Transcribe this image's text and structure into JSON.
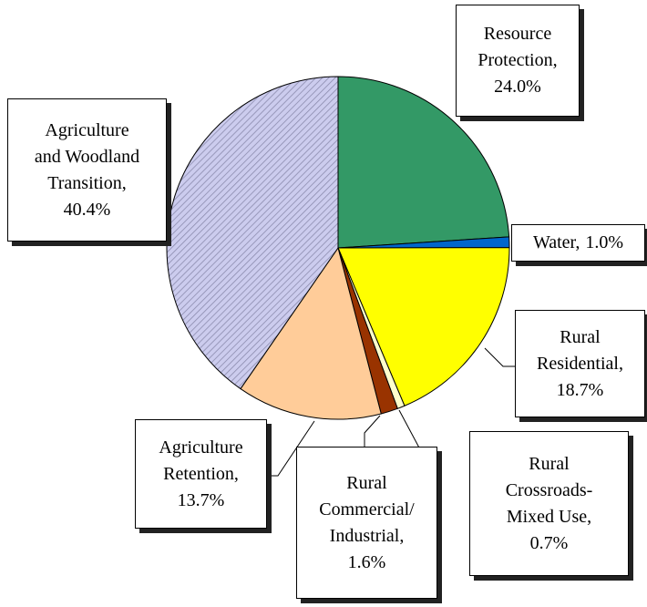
{
  "chart_data": {
    "type": "pie",
    "categories": [
      "Resource\nProtection,",
      "Water,",
      "Rural\nResidential,",
      "Rural\nCrossroads-\nMixed Use,",
      "Rural\nCommercial/\nIndustrial,",
      "Agriculture\nRetention,",
      "Agriculture\nand Woodland\nTransition,"
    ],
    "values": [
      24.0,
      1.0,
      18.7,
      0.7,
      1.6,
      13.7,
      40.4
    ],
    "value_labels": [
      "24.0%",
      "1.0%",
      "18.7%",
      "0.7%",
      "1.6%",
      "13.7%",
      "40.4%"
    ],
    "colors": [
      "#339966",
      "#0066cc",
      "#ffff00",
      "#ffffcc",
      "#993300",
      "#ffcc99",
      "hatch"
    ]
  }
}
